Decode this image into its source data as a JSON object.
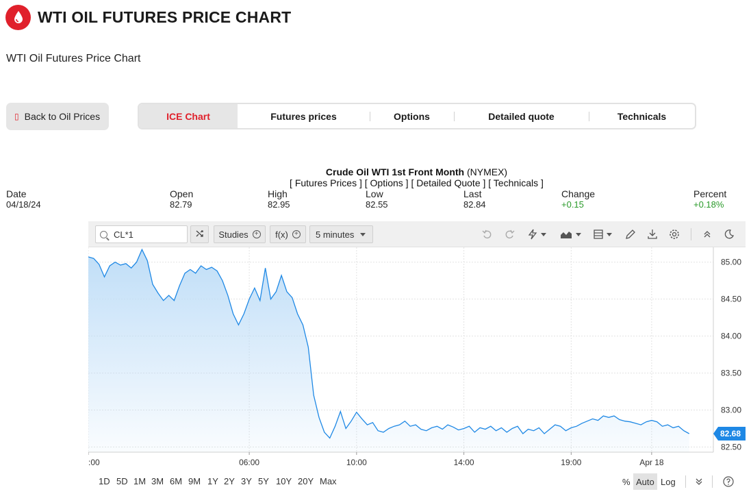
{
  "page": {
    "title": "WTI OIL FUTURES PRICE CHART",
    "subtitle": "WTI Oil Futures Price Chart",
    "brand_color": "#e0202b"
  },
  "nav": {
    "back_label": "Back to Oil Prices",
    "tabs": [
      {
        "label": "ICE Chart",
        "active": true
      },
      {
        "label": "Futures prices",
        "active": false
      },
      {
        "label": "Options",
        "active": false
      },
      {
        "label": "Detailed quote",
        "active": false
      },
      {
        "label": "Technicals",
        "active": false
      }
    ]
  },
  "quote": {
    "name": "Crude Oil WTI 1st Front Month",
    "exchange": "(NYMEX)",
    "links": "[ Futures Prices ] [ Options ] [ Detailed Quote ] [ Technicals ]",
    "date_label": "Date",
    "date_value": "04/18/24",
    "open_label": "Open",
    "open_value": "82.79",
    "high_label": "High",
    "high_value": "82.95",
    "low_label": "Low",
    "low_value": "82.55",
    "last_label": "Last",
    "last_value": "82.84",
    "change_label": "Change",
    "change_value": "+0.15",
    "percent_label": "Percent",
    "percent_value": "+0.18%",
    "positive_color": "#2a9a2a"
  },
  "toolbar": {
    "symbol": "CL*1",
    "studies_label": "Studies",
    "fx_label": "f(x)",
    "interval_label": "5 minutes",
    "icons": [
      "undo-icon",
      "redo-icon",
      "lightning-icon",
      "chart-type-icon",
      "layout-icon",
      "pencil-icon",
      "download-icon",
      "settings-icon",
      "collapse-icon",
      "dark-mode-icon"
    ]
  },
  "chart_data": {
    "type": "area",
    "line_color": "#1e88e5",
    "fill_color": "#bcdcf7",
    "last_price_label": "82.68",
    "y_ticks": [
      "85.00",
      "84.50",
      "84.00",
      "83.50",
      "83.00",
      "82.50"
    ],
    "y_tick_values": [
      85.0,
      84.5,
      84.0,
      83.5,
      83.0,
      82.5
    ],
    "ylim": [
      82.43,
      85.2
    ],
    "x_ticks": [
      {
        "label": ":00",
        "x": 0
      },
      {
        "label": "06:00",
        "x": 6
      },
      {
        "label": "10:00",
        "x": 10
      },
      {
        "label": "14:00",
        "x": 14
      },
      {
        "label": "19:00",
        "x": 18
      },
      {
        "label": "Apr 18",
        "x": 21
      }
    ],
    "xlim": [
      0,
      23.3
    ],
    "grid": true,
    "x": [
      0.0,
      0.2,
      0.4,
      0.6,
      0.8,
      1.0,
      1.2,
      1.4,
      1.6,
      1.8,
      2.0,
      2.2,
      2.4,
      2.6,
      2.8,
      3.0,
      3.2,
      3.4,
      3.6,
      3.8,
      4.0,
      4.2,
      4.4,
      4.6,
      4.8,
      5.0,
      5.2,
      5.4,
      5.6,
      5.8,
      6.0,
      6.2,
      6.4,
      6.6,
      6.8,
      7.0,
      7.2,
      7.4,
      7.6,
      7.8,
      8.0,
      8.2,
      8.4,
      8.6,
      8.8,
      9.0,
      9.2,
      9.4,
      9.6,
      9.8,
      10.0,
      10.2,
      10.4,
      10.6,
      10.8,
      11.0,
      11.2,
      11.4,
      11.6,
      11.8,
      12.0,
      12.2,
      12.4,
      12.6,
      12.8,
      13.0,
      13.2,
      13.4,
      13.6,
      13.8,
      14.0,
      14.2,
      14.4,
      14.6,
      14.8,
      15.0,
      15.2,
      15.4,
      15.6,
      15.8,
      16.0,
      16.2,
      16.4,
      16.6,
      16.8,
      17.0,
      17.2,
      17.4,
      17.6,
      17.8,
      18.0,
      18.2,
      18.4,
      18.6,
      18.8,
      19.0,
      19.2,
      19.4,
      19.6,
      19.8,
      20.0,
      20.2,
      20.4,
      20.6,
      20.8,
      21.0,
      21.2,
      21.4,
      21.6,
      21.8,
      22.0,
      22.2,
      22.4
    ],
    "y": [
      85.07,
      85.05,
      84.97,
      84.8,
      84.95,
      85.0,
      84.96,
      84.98,
      84.92,
      85.0,
      85.17,
      85.02,
      84.7,
      84.58,
      84.48,
      84.55,
      84.48,
      84.68,
      84.85,
      84.9,
      84.85,
      84.95,
      84.9,
      84.93,
      84.88,
      84.75,
      84.55,
      84.3,
      84.15,
      84.3,
      84.5,
      84.65,
      84.48,
      84.92,
      84.5,
      84.6,
      84.82,
      84.6,
      84.52,
      84.3,
      84.15,
      83.85,
      83.2,
      82.9,
      82.7,
      82.62,
      82.78,
      82.98,
      82.75,
      82.85,
      82.97,
      82.88,
      82.8,
      82.83,
      82.72,
      82.7,
      82.75,
      82.78,
      82.8,
      82.85,
      82.78,
      82.8,
      82.74,
      82.72,
      82.76,
      82.78,
      82.74,
      82.8,
      82.77,
      82.73,
      82.75,
      82.78,
      82.7,
      82.76,
      82.74,
      82.78,
      82.72,
      82.76,
      82.7,
      82.75,
      82.78,
      82.68,
      82.74,
      82.72,
      82.76,
      82.68,
      82.74,
      82.8,
      82.78,
      82.72,
      82.76,
      82.78,
      82.82,
      82.85,
      82.88,
      82.86,
      82.92,
      82.9,
      82.92,
      82.87,
      82.85,
      82.84,
      82.82,
      82.8,
      82.84,
      82.86,
      82.84,
      82.78,
      82.8,
      82.76,
      82.78,
      82.72,
      82.68
    ]
  },
  "range": {
    "buttons": [
      "1D",
      "5D",
      "1M",
      "3M",
      "6M",
      "9M",
      "1Y",
      "2Y",
      "3Y",
      "5Y",
      "10Y",
      "20Y",
      "Max"
    ],
    "scale_percent": "%",
    "scale_auto": "Auto",
    "scale_log": "Log"
  }
}
